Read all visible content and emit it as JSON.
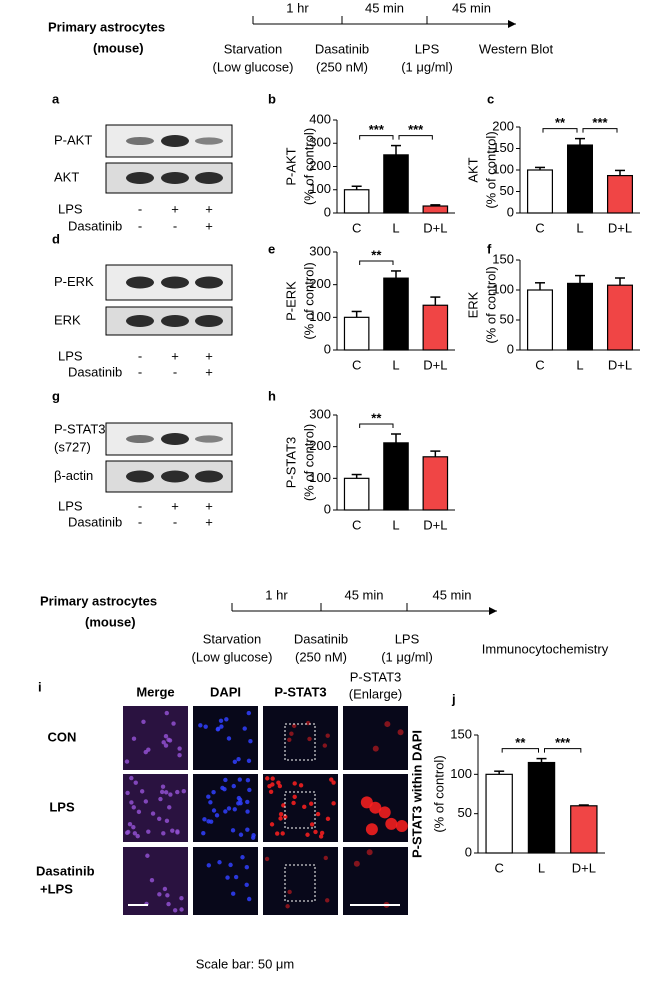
{
  "timelines": [
    {
      "label": [
        "Primary astrocytes",
        "(mouse)"
      ],
      "intervals": [
        "1 hr",
        "45 min",
        "45 min"
      ],
      "steps": [
        [
          "Starvation",
          "(Low glucose)"
        ],
        [
          "Dasatinib",
          "(250 nM)"
        ],
        [
          "LPS",
          "(1 μg/ml)"
        ],
        [
          "Western Blot"
        ]
      ]
    },
    {
      "label": [
        "Primary astrocytes",
        "(mouse)"
      ],
      "intervals": [
        "1 hr",
        "45 min",
        "45 min"
      ],
      "steps": [
        [
          "Starvation",
          "(Low glucose)"
        ],
        [
          "Dasatinib",
          "(250 nM)"
        ],
        [
          "LPS",
          "(1 μg/ml)"
        ],
        [
          "Immunocytochemistry"
        ]
      ]
    }
  ],
  "blots": [
    {
      "letter": "a",
      "rows": [
        [
          "P-AKT"
        ],
        [
          "AKT"
        ]
      ],
      "treatments": [
        {
          "name": "LPS",
          "signs": [
            "-",
            "+",
            "+"
          ]
        },
        {
          "name": "Dasatinib",
          "signs": [
            "-",
            "-",
            "+"
          ]
        }
      ]
    },
    {
      "letter": "d",
      "rows": [
        [
          "P-ERK"
        ],
        [
          "ERK"
        ]
      ],
      "treatments": [
        {
          "name": "LPS",
          "signs": [
            "-",
            "+",
            "+"
          ]
        },
        {
          "name": "Dasatinib",
          "signs": [
            "-",
            "-",
            "+"
          ]
        }
      ]
    },
    {
      "letter": "g",
      "rows": [
        [
          "P-STAT3",
          "(s727)"
        ],
        [
          "β-actin"
        ]
      ],
      "treatments": [
        {
          "name": "LPS",
          "signs": [
            "-",
            "+",
            "+"
          ]
        },
        {
          "name": "Dasatinib",
          "signs": [
            "-",
            "-",
            "+"
          ]
        }
      ]
    }
  ],
  "imaging": {
    "letter": "i",
    "columns": [
      [
        "Merge"
      ],
      [
        "DAPI"
      ],
      [
        "P-STAT3"
      ],
      [
        "P-STAT3",
        "(Enlarge)"
      ]
    ],
    "rows": [
      [
        "CON"
      ],
      [
        "LPS"
      ],
      [
        "Dasatinib",
        "+LPS"
      ]
    ],
    "scale_note": "Scale bar: 50 μm"
  },
  "chart_data": [
    {
      "type": "bar",
      "letter": "b",
      "ylabel": [
        "P-AKT",
        "(% of control)"
      ],
      "categories": [
        "C",
        "L",
        "D+L"
      ],
      "values": [
        100,
        250,
        30
      ],
      "errors": [
        15,
        40,
        5
      ],
      "colors": [
        "#ffffff",
        "#000000",
        "#f04545"
      ],
      "ylim": [
        0,
        400
      ],
      "yticks": [
        0,
        100,
        200,
        300,
        400
      ],
      "annotations": [
        {
          "text": "***",
          "from": 0,
          "to": 1
        },
        {
          "text": "***",
          "from": 1,
          "to": 2
        }
      ]
    },
    {
      "type": "bar",
      "letter": "c",
      "ylabel": [
        "AKT",
        "(% of control)"
      ],
      "categories": [
        "C",
        "L",
        "D+L"
      ],
      "values": [
        100,
        158,
        87
      ],
      "errors": [
        6,
        15,
        12
      ],
      "colors": [
        "#ffffff",
        "#000000",
        "#f04545"
      ],
      "ylim": [
        0,
        200
      ],
      "yticks": [
        0,
        50,
        100,
        150,
        200
      ],
      "annotations": [
        {
          "text": "**",
          "from": 0,
          "to": 1
        },
        {
          "text": "***",
          "from": 1,
          "to": 2
        }
      ]
    },
    {
      "type": "bar",
      "letter": "e",
      "ylabel": [
        "P-ERK",
        "(% of control)"
      ],
      "categories": [
        "C",
        "L",
        "D+L"
      ],
      "values": [
        100,
        220,
        137
      ],
      "errors": [
        18,
        22,
        25
      ],
      "colors": [
        "#ffffff",
        "#000000",
        "#f04545"
      ],
      "ylim": [
        0,
        300
      ],
      "yticks": [
        0,
        100,
        200,
        300
      ],
      "annotations": [
        {
          "text": "**",
          "from": 0,
          "to": 1
        }
      ]
    },
    {
      "type": "bar",
      "letter": "f",
      "ylabel": [
        "ERK",
        "(% of control)"
      ],
      "categories": [
        "C",
        "L",
        "D+L"
      ],
      "values": [
        100,
        111,
        108
      ],
      "errors": [
        12,
        13,
        12
      ],
      "colors": [
        "#ffffff",
        "#000000",
        "#f04545"
      ],
      "ylim": [
        0,
        150
      ],
      "yticks": [
        0,
        50,
        100,
        150
      ],
      "annotations": []
    },
    {
      "type": "bar",
      "letter": "h",
      "ylabel": [
        "P-STAT3",
        "(% of control)"
      ],
      "categories": [
        "C",
        "L",
        "D+L"
      ],
      "values": [
        100,
        212,
        168
      ],
      "errors": [
        12,
        28,
        18
      ],
      "colors": [
        "#ffffff",
        "#000000",
        "#f04545"
      ],
      "ylim": [
        0,
        300
      ],
      "yticks": [
        0,
        100,
        200,
        300
      ],
      "annotations": [
        {
          "text": "**",
          "from": 0,
          "to": 1
        }
      ]
    },
    {
      "type": "bar",
      "letter": "j",
      "ylabel": [
        "P-STAT3 within DAPI",
        "(% of control)"
      ],
      "categories": [
        "C",
        "L",
        "D+L"
      ],
      "values": [
        100,
        115,
        60
      ],
      "errors": [
        4,
        5,
        1
      ],
      "colors": [
        "#ffffff",
        "#000000",
        "#f04545"
      ],
      "ylim": [
        0,
        150
      ],
      "yticks": [
        0,
        50,
        100,
        150
      ],
      "annotations": [
        {
          "text": "**",
          "from": 0,
          "to": 1
        },
        {
          "text": "***",
          "from": 1,
          "to": 2
        }
      ]
    }
  ]
}
